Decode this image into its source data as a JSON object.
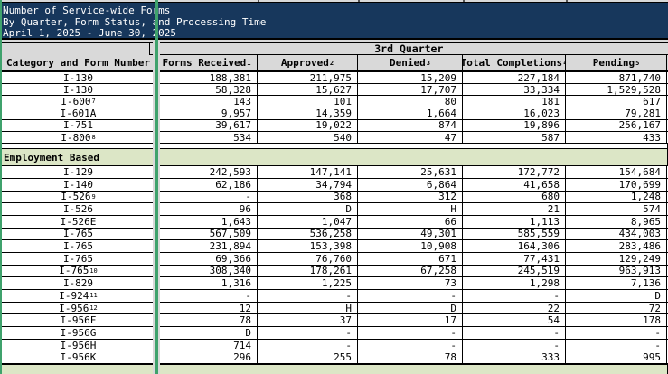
{
  "title_box": {
    "lines": [
      "Number of Service-wide Forms",
      "By Quarter, Form Status, and Processing Time",
      "April 1, 2025 - June 30, 2025"
    ]
  },
  "colors": {
    "title_bg": "#17375c",
    "header_bg": "#d9d9d9",
    "section_bg": "#dce6c6",
    "gridline_green": "#3fa26c",
    "border": "#000000"
  },
  "table": {
    "quarter_header": "3rd Quarter",
    "columns": [
      {
        "label": "Category and Form Number",
        "sup": ""
      },
      {
        "label": "Forms Received",
        "sup": "1"
      },
      {
        "label": "Approved",
        "sup": "2"
      },
      {
        "label": "Denied",
        "sup": "3"
      },
      {
        "label": "Total Completions",
        "sup": "4"
      },
      {
        "label": "Pending",
        "sup": "5"
      }
    ],
    "sections": [
      {
        "header": null,
        "rows": [
          {
            "form": "I-130",
            "sup": "",
            "values": [
              "188,381",
              "211,975",
              "15,209",
              "227,184",
              "871,740"
            ]
          },
          {
            "form": "I-130",
            "sup": "",
            "values": [
              "58,328",
              "15,627",
              "17,707",
              "33,334",
              "1,529,528"
            ]
          },
          {
            "form": "I-600",
            "sup": "7",
            "values": [
              "143",
              "101",
              "80",
              "181",
              "617"
            ]
          },
          {
            "form": "I-601A",
            "sup": "",
            "values": [
              "9,957",
              "14,359",
              "1,664",
              "16,023",
              "79,281"
            ]
          },
          {
            "form": "I-751",
            "sup": "",
            "values": [
              "39,617",
              "19,022",
              "874",
              "19,896",
              "256,167"
            ]
          },
          {
            "form": "I-800",
            "sup": "8",
            "values": [
              "534",
              "540",
              "47",
              "587",
              "433"
            ]
          }
        ]
      },
      {
        "header": "Employment Based",
        "rows": [
          {
            "form": "I-129",
            "sup": "",
            "values": [
              "242,593",
              "147,141",
              "25,631",
              "172,772",
              "154,684"
            ]
          },
          {
            "form": "I-140",
            "sup": "",
            "values": [
              "62,186",
              "34,794",
              "6,864",
              "41,658",
              "170,699"
            ]
          },
          {
            "form": "I-526",
            "sup": "9",
            "values": [
              "-",
              "368",
              "312",
              "680",
              "1,248"
            ]
          },
          {
            "form": "I-526",
            "sup": "",
            "values": [
              "96",
              "D",
              "H",
              "21",
              "574"
            ]
          },
          {
            "form": "I-526E",
            "sup": "",
            "values": [
              "1,643",
              "1,047",
              "66",
              "1,113",
              "8,965"
            ]
          },
          {
            "form": "I-765",
            "sup": "",
            "values": [
              "567,509",
              "536,258",
              "49,301",
              "585,559",
              "434,003"
            ]
          },
          {
            "form": "I-765",
            "sup": "",
            "values": [
              "231,894",
              "153,398",
              "10,908",
              "164,306",
              "283,486"
            ]
          },
          {
            "form": "I-765",
            "sup": "",
            "values": [
              "69,366",
              "76,760",
              "671",
              "77,431",
              "129,249"
            ]
          },
          {
            "form": "I-765",
            "sup": "10",
            "values": [
              "308,340",
              "178,261",
              "67,258",
              "245,519",
              "963,913"
            ]
          },
          {
            "form": "I-829",
            "sup": "",
            "values": [
              "1,316",
              "1,225",
              "73",
              "1,298",
              "7,136"
            ]
          },
          {
            "form": "I-924",
            "sup": "11",
            "values": [
              "-",
              "-",
              "-",
              "-",
              "D"
            ]
          },
          {
            "form": "I-956",
            "sup": "12",
            "values": [
              "12",
              "H",
              "D",
              "22",
              "72"
            ]
          },
          {
            "form": "I-956F",
            "sup": "",
            "values": [
              "78",
              "37",
              "17",
              "54",
              "178"
            ]
          },
          {
            "form": "I-956G",
            "sup": "",
            "values": [
              "D",
              "-",
              "-",
              "-",
              "-"
            ]
          },
          {
            "form": "I-956H",
            "sup": "",
            "values": [
              "714",
              "-",
              "-",
              "-",
              "-"
            ]
          },
          {
            "form": "I-956K",
            "sup": "",
            "values": [
              "296",
              "255",
              "78",
              "333",
              "995"
            ]
          }
        ]
      },
      {
        "header": "",
        "rows": []
      }
    ]
  }
}
